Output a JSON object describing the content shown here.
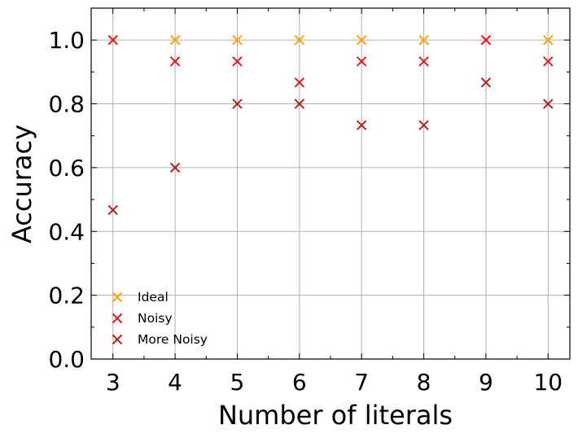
{
  "chart_data": {
    "type": "scatter",
    "title": "",
    "xlabel": "Number of literals",
    "ylabel": "Accuracy",
    "xlim": [
      2.65,
      10.35
    ],
    "ylim": [
      0.0,
      1.1
    ],
    "x_ticks": [
      3,
      4,
      5,
      6,
      7,
      8,
      9,
      10
    ],
    "y_ticks": [
      0.0,
      0.2,
      0.4,
      0.6,
      0.8,
      1.0
    ],
    "x_tick_labels": [
      "3",
      "4",
      "5",
      "6",
      "7",
      "8",
      "9",
      "10"
    ],
    "y_tick_labels": [
      "0.0",
      "0.2",
      "0.4",
      "0.6",
      "0.8",
      "1.0"
    ],
    "grid": true,
    "legend_position": "lower-left",
    "marker": "x",
    "series": [
      {
        "name": "Ideal",
        "color": "#FFA500",
        "x": [
          3,
          4,
          5,
          6,
          7,
          8,
          9,
          10
        ],
        "y": [
          1.0,
          1.0,
          1.0,
          1.0,
          1.0,
          1.0,
          1.0,
          1.0
        ]
      },
      {
        "name": "Noisy",
        "color": "#E31A1C",
        "x": [
          3,
          4,
          5,
          6,
          7,
          8,
          9,
          10
        ],
        "y": [
          1.0,
          0.933,
          0.933,
          0.867,
          0.933,
          0.933,
          1.0,
          0.933
        ]
      },
      {
        "name": "More Noisy",
        "color": "#B22222",
        "x": [
          3,
          4,
          5,
          6,
          7,
          8,
          9,
          10
        ],
        "y": [
          0.467,
          0.6,
          0.8,
          0.8,
          0.733,
          0.733,
          0.867,
          0.8
        ]
      }
    ]
  }
}
